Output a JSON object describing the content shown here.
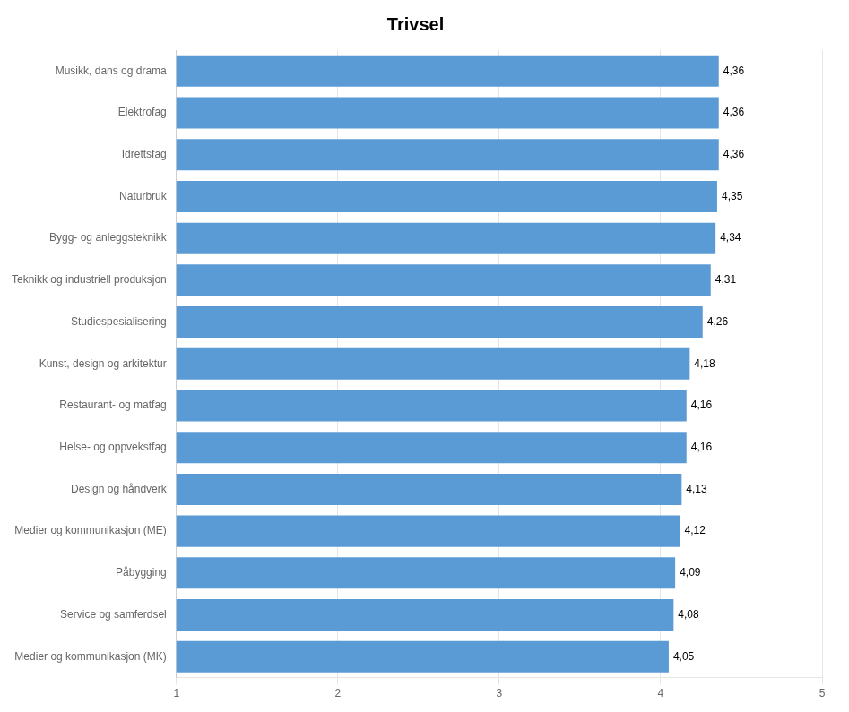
{
  "chart_data": {
    "type": "bar",
    "orientation": "horizontal",
    "title": "Trivsel",
    "categories": [
      "Medier og kommunikasjon (MK)",
      "Service og samferdsel",
      "Påbygging",
      "Medier og kommunikasjon (ME)",
      "Design og håndverk",
      "Helse- og oppvekstfag",
      "Restaurant- og matfag",
      "Kunst, design og arkitektur",
      "Studiespesialisering",
      "Teknikk og industriell produksjon",
      "Bygg- og anleggsteknikk",
      "Naturbruk",
      "Idrettsfag",
      "Elektrofag",
      "Musikk, dans og drama"
    ],
    "values": [
      4.05,
      4.08,
      4.09,
      4.12,
      4.13,
      4.16,
      4.16,
      4.18,
      4.26,
      4.31,
      4.34,
      4.35,
      4.36,
      4.36,
      4.36
    ],
    "value_labels": [
      "4,05",
      "4,08",
      "4,09",
      "4,12",
      "4,13",
      "4,16",
      "4,16",
      "4,18",
      "4,26",
      "4,31",
      "4,34",
      "4,35",
      "4,36",
      "4,36",
      "4,36"
    ],
    "data_labels": true,
    "color": "#5B9BD5",
    "xlim": [
      1,
      5
    ],
    "xticks": [
      1,
      2,
      3,
      4,
      5
    ],
    "grid": true
  }
}
